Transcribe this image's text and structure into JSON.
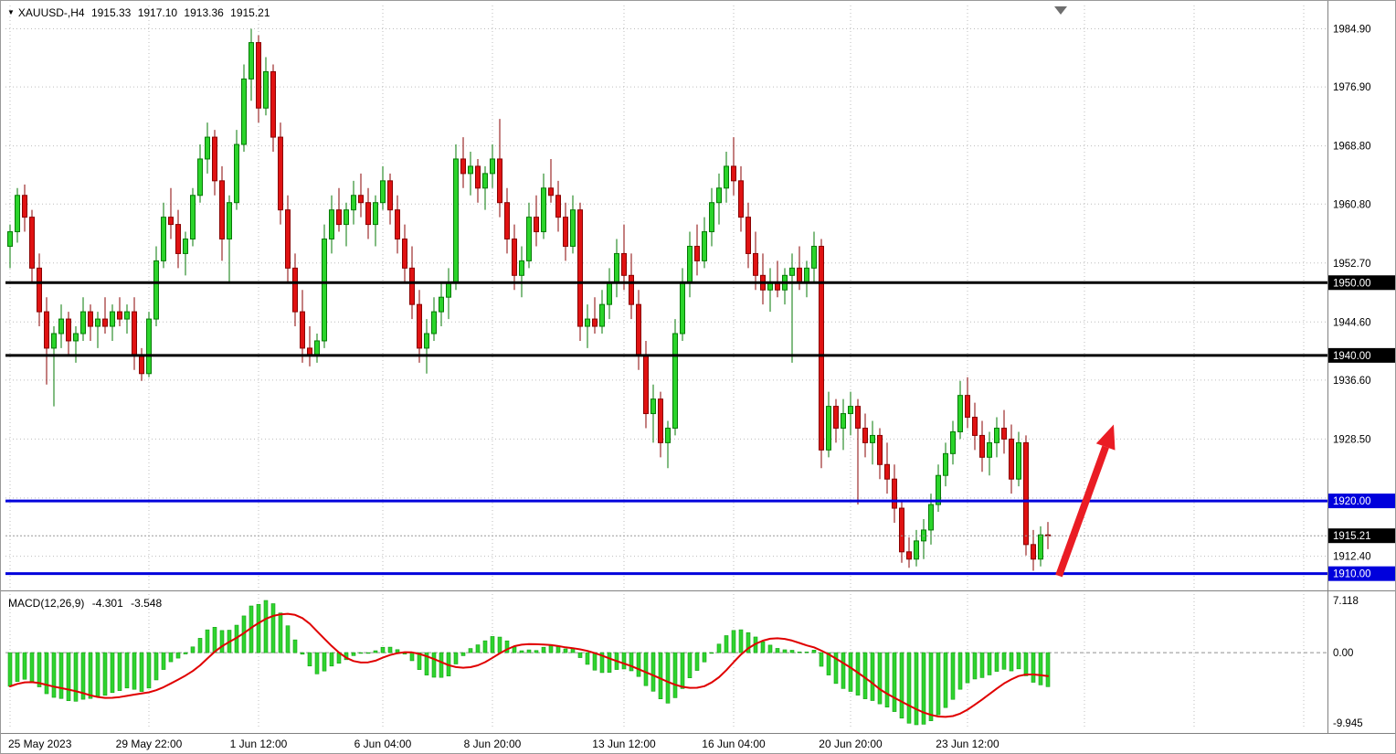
{
  "window": {
    "background": "#ffffff",
    "border_color": "#9a9a9a"
  },
  "header": {
    "dropdown_glyph": "▼",
    "symbol_period": "XAUUSD-,H4",
    "open": "1915.33",
    "high": "1917.10",
    "low": "1913.36",
    "close": "1915.21"
  },
  "chart_data": {
    "type": "candlestick",
    "symbol": "XAUUSD",
    "timeframe": "H4",
    "title": "XAUUSD-,H4 1915.33 1917.10 1913.36 1915.21",
    "ylim": [
      1908.2,
      1988.1
    ],
    "grid": true,
    "price_axis": {
      "gridlines": [
        {
          "price": 1984.9,
          "label": "1984.90"
        },
        {
          "price": 1976.9,
          "label": "1976.90"
        },
        {
          "price": 1968.8,
          "label": "1968.80"
        },
        {
          "price": 1960.8,
          "label": "1960.80"
        },
        {
          "price": 1952.7,
          "label": "1952.70"
        },
        {
          "price": 1944.6,
          "label": "1944.60"
        },
        {
          "price": 1936.6,
          "label": "1936.60"
        },
        {
          "price": 1928.5,
          "label": "1928.50"
        },
        {
          "price": 1920.4,
          "label": "1920.40"
        },
        {
          "price": 1912.4,
          "label": "1912.40"
        }
      ]
    },
    "levels": [
      {
        "price": 1950.0,
        "label": "1950.00",
        "color": "#000000"
      },
      {
        "price": 1940.0,
        "label": "1940.00",
        "color": "#000000"
      },
      {
        "price": 1920.0,
        "label": "1920.00",
        "color": "#0000dc"
      },
      {
        "price": 1910.0,
        "label": "1910.00",
        "color": "#0000dc"
      }
    ],
    "current_price": {
      "price": 1915.21,
      "label": "1915.21"
    },
    "time_axis": {
      "ticks": [
        {
          "bar": 0,
          "label": "25 May 2023"
        },
        {
          "bar": 19,
          "label": "29 May 22:00"
        },
        {
          "bar": 34,
          "label": "1 Jun 12:00"
        },
        {
          "bar": 51,
          "label": "6 Jun 04:00"
        },
        {
          "bar": 66,
          "label": "8 Jun 20:00"
        },
        {
          "bar": 84,
          "label": "13 Jun 12:00"
        },
        {
          "bar": 99,
          "label": "16 Jun 04:00"
        },
        {
          "bar": 115,
          "label": "20 Jun 20:00"
        },
        {
          "bar": 131,
          "label": "23 Jun 12:00"
        },
        {
          "bar": 147,
          "label": ""
        },
        {
          "bar": 162,
          "label": ""
        },
        {
          "bar": 177,
          "label": ""
        }
      ]
    },
    "candles": [
      [
        1955,
        1958,
        1952,
        1957
      ],
      [
        1957,
        1963,
        1955.5,
        1962
      ],
      [
        1962,
        1963.5,
        1957,
        1959
      ],
      [
        1959,
        1960,
        1950,
        1952
      ],
      [
        1952,
        1954,
        1944,
        1946
      ],
      [
        1946,
        1948,
        1936,
        1941
      ],
      [
        1941,
        1944,
        1933,
        1943
      ],
      [
        1943,
        1947,
        1941,
        1945
      ],
      [
        1945,
        1946,
        1940,
        1942
      ],
      [
        1942,
        1944,
        1939,
        1943
      ],
      [
        1943,
        1948,
        1942,
        1946
      ],
      [
        1946,
        1947,
        1942,
        1944
      ],
      [
        1944,
        1946,
        1941,
        1945
      ],
      [
        1945,
        1948,
        1943,
        1944
      ],
      [
        1944,
        1947,
        1942,
        1946
      ],
      [
        1946,
        1948,
        1944,
        1945
      ],
      [
        1945,
        1947,
        1943,
        1946
      ],
      [
        1946,
        1948,
        1938,
        1940
      ],
      [
        1940,
        1941,
        1936.5,
        1937.5
      ],
      [
        1937.5,
        1946,
        1937,
        1945
      ],
      [
        1945,
        1955,
        1944,
        1953
      ],
      [
        1953,
        1961,
        1952,
        1959
      ],
      [
        1959,
        1963,
        1956,
        1958
      ],
      [
        1958,
        1960,
        1952,
        1954
      ],
      [
        1954,
        1957,
        1951,
        1956
      ],
      [
        1956,
        1963,
        1955,
        1962
      ],
      [
        1962,
        1969,
        1961,
        1967
      ],
      [
        1967,
        1972,
        1965,
        1970
      ],
      [
        1970,
        1971,
        1962,
        1964
      ],
      [
        1964,
        1966,
        1953,
        1956
      ],
      [
        1956,
        1962,
        1950,
        1961
      ],
      [
        1961,
        1971,
        1960,
        1969
      ],
      [
        1969,
        1980,
        1968,
        1978
      ],
      [
        1978,
        1984.9,
        1975,
        1983
      ],
      [
        1983,
        1984,
        1972,
        1974
      ],
      [
        1974,
        1981,
        1973,
        1979
      ],
      [
        1979,
        1980,
        1968,
        1970
      ],
      [
        1970,
        1972,
        1958,
        1960
      ],
      [
        1960,
        1962,
        1950,
        1952
      ],
      [
        1952,
        1954,
        1944,
        1946
      ],
      [
        1946,
        1949,
        1939,
        1941
      ],
      [
        1941,
        1944,
        1938.5,
        1940
      ],
      [
        1940,
        1943,
        1939,
        1942
      ],
      [
        1942,
        1958,
        1941,
        1956
      ],
      [
        1956,
        1962,
        1954,
        1960
      ],
      [
        1960,
        1963,
        1957,
        1958
      ],
      [
        1958,
        1961,
        1955,
        1960
      ],
      [
        1960,
        1964,
        1958,
        1962
      ],
      [
        1962,
        1965,
        1959,
        1961
      ],
      [
        1961,
        1963,
        1956,
        1958
      ],
      [
        1958,
        1962,
        1955,
        1961
      ],
      [
        1961,
        1966,
        1960,
        1964
      ],
      [
        1964,
        1965,
        1958,
        1960
      ],
      [
        1960,
        1962,
        1954,
        1956
      ],
      [
        1956,
        1958,
        1950,
        1952
      ],
      [
        1952,
        1955,
        1945,
        1947
      ],
      [
        1947,
        1949,
        1939,
        1941
      ],
      [
        1941,
        1945,
        1937.5,
        1943
      ],
      [
        1943,
        1948,
        1942,
        1946
      ],
      [
        1946,
        1950,
        1944,
        1948
      ],
      [
        1948,
        1952,
        1945,
        1950
      ],
      [
        1950,
        1969,
        1949,
        1967
      ],
      [
        1967,
        1970,
        1963,
        1965
      ],
      [
        1965,
        1968,
        1962,
        1966
      ],
      [
        1966,
        1967,
        1961,
        1963
      ],
      [
        1963,
        1966,
        1960,
        1965
      ],
      [
        1965,
        1969,
        1963,
        1967
      ],
      [
        1967,
        1972.5,
        1959,
        1961
      ],
      [
        1961,
        1963,
        1954,
        1956
      ],
      [
        1956,
        1958,
        1949,
        1951
      ],
      [
        1951,
        1955,
        1948,
        1953
      ],
      [
        1953,
        1961,
        1952,
        1959
      ],
      [
        1959,
        1962,
        1955,
        1957
      ],
      [
        1957,
        1965,
        1956,
        1963
      ],
      [
        1963,
        1967,
        1961,
        1962
      ],
      [
        1962,
        1964,
        1957,
        1959
      ],
      [
        1959,
        1961,
        1953,
        1955
      ],
      [
        1955,
        1962,
        1954,
        1960
      ],
      [
        1960,
        1961,
        1942,
        1944
      ],
      [
        1944,
        1947,
        1941,
        1945
      ],
      [
        1945,
        1948,
        1943,
        1944
      ],
      [
        1944,
        1949,
        1943,
        1947
      ],
      [
        1947,
        1952,
        1945,
        1950
      ],
      [
        1950,
        1956,
        1948,
        1954
      ],
      [
        1954,
        1958,
        1949,
        1951
      ],
      [
        1951,
        1954,
        1945,
        1947
      ],
      [
        1947,
        1949,
        1938,
        1940
      ],
      [
        1940,
        1942,
        1930,
        1932
      ],
      [
        1932,
        1936,
        1928,
        1934
      ],
      [
        1934,
        1935,
        1926,
        1928
      ],
      [
        1928,
        1931,
        1924.5,
        1930
      ],
      [
        1930,
        1945,
        1929,
        1943
      ],
      [
        1943,
        1952,
        1942,
        1950
      ],
      [
        1950,
        1957,
        1948,
        1955
      ],
      [
        1955,
        1958,
        1951,
        1953
      ],
      [
        1953,
        1959,
        1952,
        1957
      ],
      [
        1957,
        1963,
        1955,
        1961
      ],
      [
        1961,
        1965,
        1958,
        1963
      ],
      [
        1963,
        1968,
        1961,
        1966
      ],
      [
        1966,
        1970,
        1962,
        1964
      ],
      [
        1964,
        1966,
        1957,
        1959
      ],
      [
        1959,
        1961,
        1952,
        1954
      ],
      [
        1954,
        1957,
        1949,
        1951
      ],
      [
        1951,
        1954,
        1947,
        1949
      ],
      [
        1949,
        1952,
        1946,
        1950
      ],
      [
        1950,
        1953,
        1948,
        1949
      ],
      [
        1949,
        1952,
        1947,
        1951
      ],
      [
        1951,
        1954,
        1939,
        1952
      ],
      [
        1952,
        1955,
        1949,
        1950
      ],
      [
        1950,
        1953,
        1948,
        1952
      ],
      [
        1952,
        1957,
        1950,
        1955
      ],
      [
        1955,
        1956,
        1924.5,
        1927
      ],
      [
        1927,
        1935,
        1926,
        1933
      ],
      [
        1933,
        1934,
        1928,
        1930
      ],
      [
        1930,
        1934,
        1927,
        1932
      ],
      [
        1932,
        1935,
        1929,
        1933
      ],
      [
        1933,
        1934,
        1919.5,
        1930
      ],
      [
        1930,
        1932,
        1926,
        1928
      ],
      [
        1928,
        1931,
        1925,
        1929
      ],
      [
        1929,
        1930,
        1923,
        1925
      ],
      [
        1925,
        1928,
        1921,
        1923
      ],
      [
        1923,
        1925,
        1917,
        1919
      ],
      [
        1919,
        1920,
        1911.5,
        1913
      ],
      [
        1913,
        1915,
        1910.8,
        1912
      ],
      [
        1912,
        1916,
        1911,
        1914.5
      ],
      [
        1914.5,
        1917.5,
        1912,
        1916
      ],
      [
        1916,
        1921,
        1914,
        1919.5
      ],
      [
        1919.5,
        1925,
        1918.5,
        1923.5
      ],
      [
        1923.5,
        1928,
        1922,
        1926.5
      ],
      [
        1926.5,
        1931,
        1925,
        1929.5
      ],
      [
        1929.5,
        1936.5,
        1928.5,
        1934.5
      ],
      [
        1934.5,
        1937,
        1930,
        1931.5
      ],
      [
        1931.5,
        1933.5,
        1927,
        1929
      ],
      [
        1929,
        1931,
        1924,
        1926
      ],
      [
        1926,
        1929.5,
        1923.5,
        1928
      ],
      [
        1928,
        1931.5,
        1926,
        1930
      ],
      [
        1930,
        1932.5,
        1926.5,
        1928.5
      ],
      [
        1928.5,
        1930.5,
        1921,
        1923
      ],
      [
        1923,
        1929.5,
        1922,
        1928
      ],
      [
        1928,
        1929,
        1912.5,
        1914
      ],
      [
        1914,
        1916,
        1910.4,
        1912
      ],
      [
        1912,
        1916.5,
        1911,
        1915.33
      ],
      [
        1915.33,
        1917.1,
        1913.36,
        1915.21
      ]
    ],
    "macd": {
      "label": "MACD(12,26,9)",
      "value_main": "-4.301",
      "value_signal": "-3.548",
      "params": {
        "fast": 12,
        "slow": 26,
        "signal": 9
      },
      "ylim": [
        -9.945,
        7.118
      ],
      "axis_labels": {
        "max": "7.118",
        "zero": "0.00",
        "min": "-9.945"
      }
    },
    "annotation_arrow": {
      "from": {
        "bar": 143.5,
        "price": 1909.7
      },
      "to": {
        "bar": 151,
        "price": 1930.5
      }
    },
    "colors": {
      "bull_fill": "#2bd42b",
      "bull_stroke": "#067a06",
      "bear_fill": "#e01212",
      "bear_stroke": "#8a0000",
      "grid": "#bdbdbd",
      "separator": "#808080",
      "hist_fill": "#2fd32f",
      "hist_stroke": "#12a312",
      "signal": "#e00000",
      "current_line": "#999999",
      "arrow": "#ea1c24",
      "axis_text": "#000000",
      "background": "#ffffff"
    }
  }
}
